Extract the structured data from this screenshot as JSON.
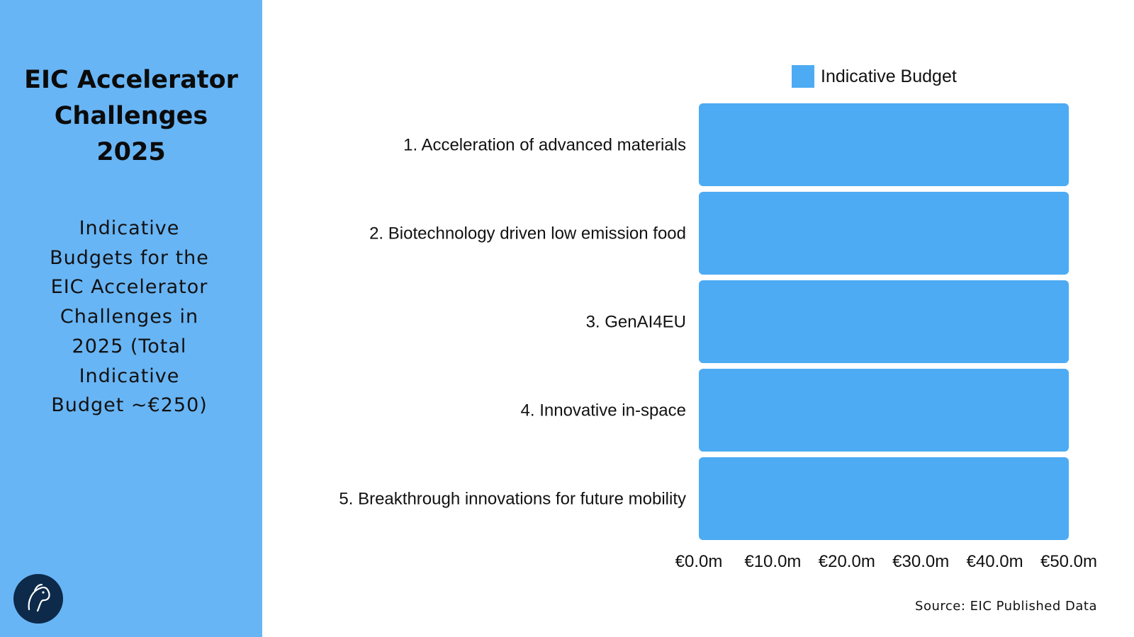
{
  "sidebar": {
    "title_lines": [
      "EIC Accelerator",
      "Challenges",
      "2025"
    ],
    "subtitle_lines": [
      "Indicative",
      "Budgets for the",
      "EIC Accelerator",
      "Challenges in",
      "2025 (Total",
      "Indicative",
      "Budget ~€250)"
    ],
    "background_color": "#68b5f5",
    "logo_icon": "horse-head-icon",
    "logo_color": "#0d2a4a"
  },
  "chart_data": {
    "type": "bar",
    "orientation": "horizontal",
    "categories": [
      "1. Acceleration of advanced materials",
      "2. Biotechnology driven low emission food",
      "3. GenAI4EU",
      "4. Innovative in-space",
      "5. Breakthrough innovations for future mobility"
    ],
    "series": [
      {
        "name": "Indicative Budget",
        "values": [
          50,
          50,
          50,
          50,
          50
        ],
        "color": "#4dabf3"
      }
    ],
    "xlim": [
      0,
      50
    ],
    "x_tick_values": [
      0,
      10,
      20,
      30,
      40,
      50
    ],
    "x_tick_labels": [
      "€0.0m",
      "€10.0m",
      "€20.0m",
      "€30.0m",
      "€40.0m",
      "€50.0m"
    ],
    "legend_position": "top",
    "grid": false
  },
  "source": "Source: EIC Published Data"
}
